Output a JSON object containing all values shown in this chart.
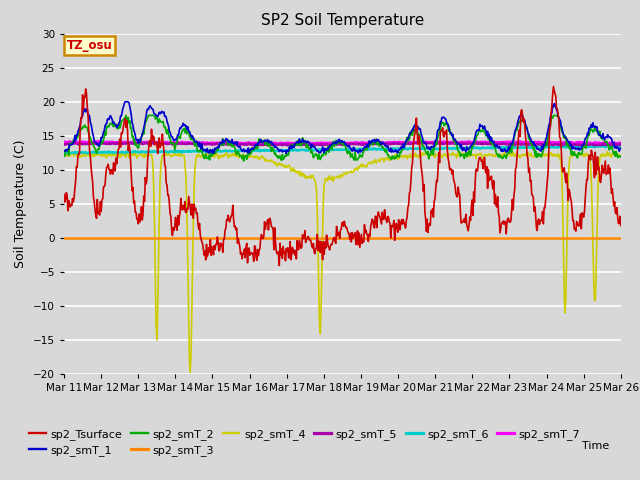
{
  "title": "SP2 Soil Temperature",
  "ylabel": "Soil Temperature (C)",
  "xlabel": "Time",
  "xlabels": [
    "Mar 11",
    "Mar 12",
    "Mar 13",
    "Mar 14",
    "Mar 15",
    "Mar 16",
    "Mar 17",
    "Mar 18",
    "Mar 19",
    "Mar 20",
    "Mar 21",
    "Mar 22",
    "Mar 23",
    "Mar 24",
    "Mar 25",
    "Mar 26"
  ],
  "ylim": [
    -20,
    30
  ],
  "yticks": [
    -20,
    -15,
    -10,
    -5,
    0,
    5,
    10,
    15,
    20,
    25,
    30
  ],
  "bg_color": "#d8d8d8",
  "plot_bg_color": "#d8d8d8",
  "grid_color": "#ffffff",
  "legend_items": [
    {
      "label": "sp2_Tsurface",
      "color": "#cc0000",
      "lw": 1.2
    },
    {
      "label": "sp2_smT_1",
      "color": "#0000cc",
      "lw": 1.2
    },
    {
      "label": "sp2_smT_2",
      "color": "#00aa00",
      "lw": 1.2
    },
    {
      "label": "sp2_smT_3",
      "color": "#ff8800",
      "lw": 1.8
    },
    {
      "label": "sp2_smT_4",
      "color": "#cccc00",
      "lw": 1.2
    },
    {
      "label": "sp2_smT_5",
      "color": "#aa00aa",
      "lw": 1.8
    },
    {
      "label": "sp2_smT_6",
      "color": "#00cccc",
      "lw": 1.8
    },
    {
      "label": "sp2_smT_7",
      "color": "#ff00ff",
      "lw": 1.8
    }
  ],
  "tz_label": "TZ_osu",
  "tz_box_facecolor": "#ffffcc",
  "tz_box_edgecolor": "#cc8800",
  "tz_text_color": "#cc0000"
}
